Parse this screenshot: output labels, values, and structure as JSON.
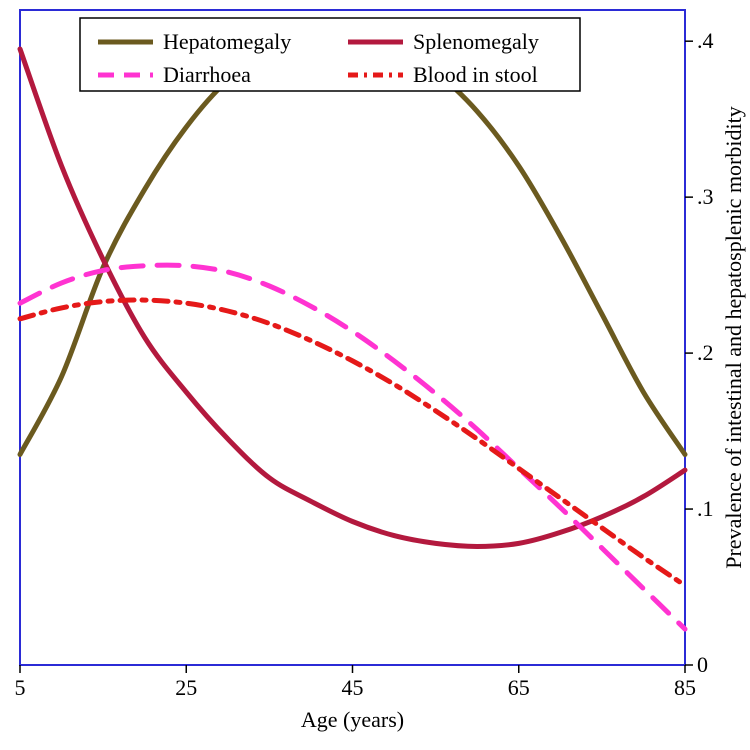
{
  "chart": {
    "type": "line",
    "background_color": "#ffffff",
    "plot_border_color": "#2b2bd6",
    "xlabel": "Age (years)",
    "ylabel": "Prevalence of intestinal and hepatosplenic morbidity",
    "label_fontsize": 22,
    "tick_fontsize": 22,
    "xlim": [
      5,
      85
    ],
    "ylim": [
      0,
      0.42
    ],
    "xticks": [
      5,
      25,
      45,
      65,
      85
    ],
    "yticks": [
      0,
      0.1,
      0.2,
      0.3,
      0.4
    ],
    "ytick_labels": [
      "0",
      ".1",
      ".2",
      ".3",
      ".4"
    ],
    "legend": {
      "border_color": "#000000",
      "items": [
        "Hepatomegaly",
        "Splenomegaly",
        "Diarrhoea",
        "Blood in stool"
      ]
    },
    "series": {
      "hepatomegaly": {
        "label": "Hepatomegaly",
        "color": "#6b5a1f",
        "line_width": 5,
        "dash": "solid",
        "points": [
          [
            5,
            0.135
          ],
          [
            10,
            0.185
          ],
          [
            15,
            0.255
          ],
          [
            20,
            0.305
          ],
          [
            25,
            0.345
          ],
          [
            30,
            0.375
          ],
          [
            35,
            0.393
          ],
          [
            40,
            0.399
          ],
          [
            45,
            0.4
          ],
          [
            50,
            0.395
          ],
          [
            55,
            0.38
          ],
          [
            60,
            0.355
          ],
          [
            65,
            0.32
          ],
          [
            70,
            0.275
          ],
          [
            75,
            0.225
          ],
          [
            80,
            0.175
          ],
          [
            85,
            0.135
          ]
        ]
      },
      "splenomegaly": {
        "label": "Splenomegaly",
        "color": "#b3193e",
        "line_width": 5,
        "dash": "solid",
        "points": [
          [
            5,
            0.395
          ],
          [
            10,
            0.32
          ],
          [
            15,
            0.26
          ],
          [
            20,
            0.21
          ],
          [
            25,
            0.175
          ],
          [
            30,
            0.145
          ],
          [
            35,
            0.12
          ],
          [
            40,
            0.105
          ],
          [
            45,
            0.092
          ],
          [
            50,
            0.083
          ],
          [
            55,
            0.078
          ],
          [
            60,
            0.076
          ],
          [
            65,
            0.078
          ],
          [
            70,
            0.085
          ],
          [
            75,
            0.095
          ],
          [
            80,
            0.108
          ],
          [
            85,
            0.125
          ]
        ]
      },
      "diarrhoea": {
        "label": "Diarrhoea",
        "color": "#ff33d1",
        "line_width": 5,
        "dash": "dashed",
        "points": [
          [
            5,
            0.232
          ],
          [
            10,
            0.245
          ],
          [
            15,
            0.253
          ],
          [
            20,
            0.256
          ],
          [
            25,
            0.256
          ],
          [
            30,
            0.252
          ],
          [
            35,
            0.243
          ],
          [
            40,
            0.23
          ],
          [
            45,
            0.214
          ],
          [
            50,
            0.195
          ],
          [
            55,
            0.174
          ],
          [
            60,
            0.151
          ],
          [
            65,
            0.126
          ],
          [
            70,
            0.101
          ],
          [
            75,
            0.075
          ],
          [
            80,
            0.049
          ],
          [
            85,
            0.023
          ]
        ]
      },
      "blood_in_stool": {
        "label": "Blood in stool",
        "color": "#e51919",
        "line_width": 5,
        "dash": "dash-dot",
        "points": [
          [
            5,
            0.222
          ],
          [
            10,
            0.229
          ],
          [
            15,
            0.233
          ],
          [
            20,
            0.234
          ],
          [
            25,
            0.232
          ],
          [
            30,
            0.227
          ],
          [
            35,
            0.219
          ],
          [
            40,
            0.208
          ],
          [
            45,
            0.195
          ],
          [
            50,
            0.18
          ],
          [
            55,
            0.163
          ],
          [
            60,
            0.145
          ],
          [
            65,
            0.126
          ],
          [
            70,
            0.107
          ],
          [
            75,
            0.088
          ],
          [
            80,
            0.069
          ],
          [
            85,
            0.051
          ]
        ]
      }
    }
  }
}
